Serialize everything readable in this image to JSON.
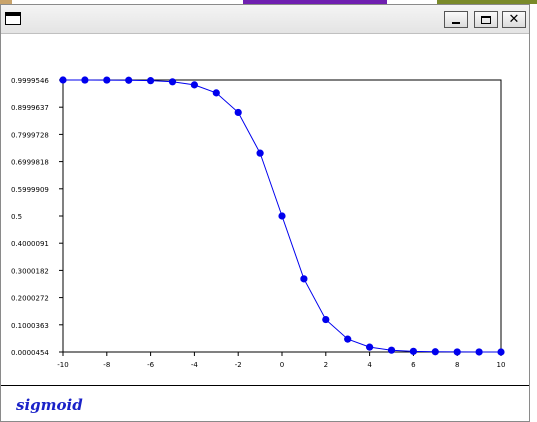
{
  "window": {
    "footer_title": "sigmoid",
    "controls": {
      "minimize": "_",
      "close": "✕"
    }
  },
  "chart_data": {
    "type": "line",
    "x": [
      -10,
      -9,
      -8,
      -7,
      -6,
      -5,
      -4,
      -3,
      -2,
      -1,
      0,
      1,
      2,
      3,
      4,
      5,
      6,
      7,
      8,
      9,
      10
    ],
    "series": [
      {
        "values": [
          0.9999546,
          0.9998766,
          0.9996646,
          0.9990889,
          0.9975274,
          0.9933071,
          0.9820138,
          0.9525741,
          0.8807971,
          0.7310586,
          0.5,
          0.2689414,
          0.1192029,
          0.0474259,
          0.0179862,
          0.0066929,
          0.0024726,
          0.0009111,
          0.0003354,
          0.0001234,
          4.54e-05
        ],
        "color": "#0000ee"
      }
    ],
    "x_ticks": [
      "-10",
      "-8",
      "-6",
      "-4",
      "-2",
      "0",
      "2",
      "4",
      "6",
      "8",
      "10"
    ],
    "y_ticks": [
      "0.0000454",
      "0.1000363",
      "0.2000272",
      "0.3000182",
      "0.4000091",
      "0.5",
      "0.5999909",
      "0.6999818",
      "0.7999728",
      "0.8999637",
      "0.9999546"
    ],
    "xlim": [
      -10,
      10
    ],
    "ylim": [
      4.54e-05,
      0.9999546
    ],
    "grid": false
  }
}
